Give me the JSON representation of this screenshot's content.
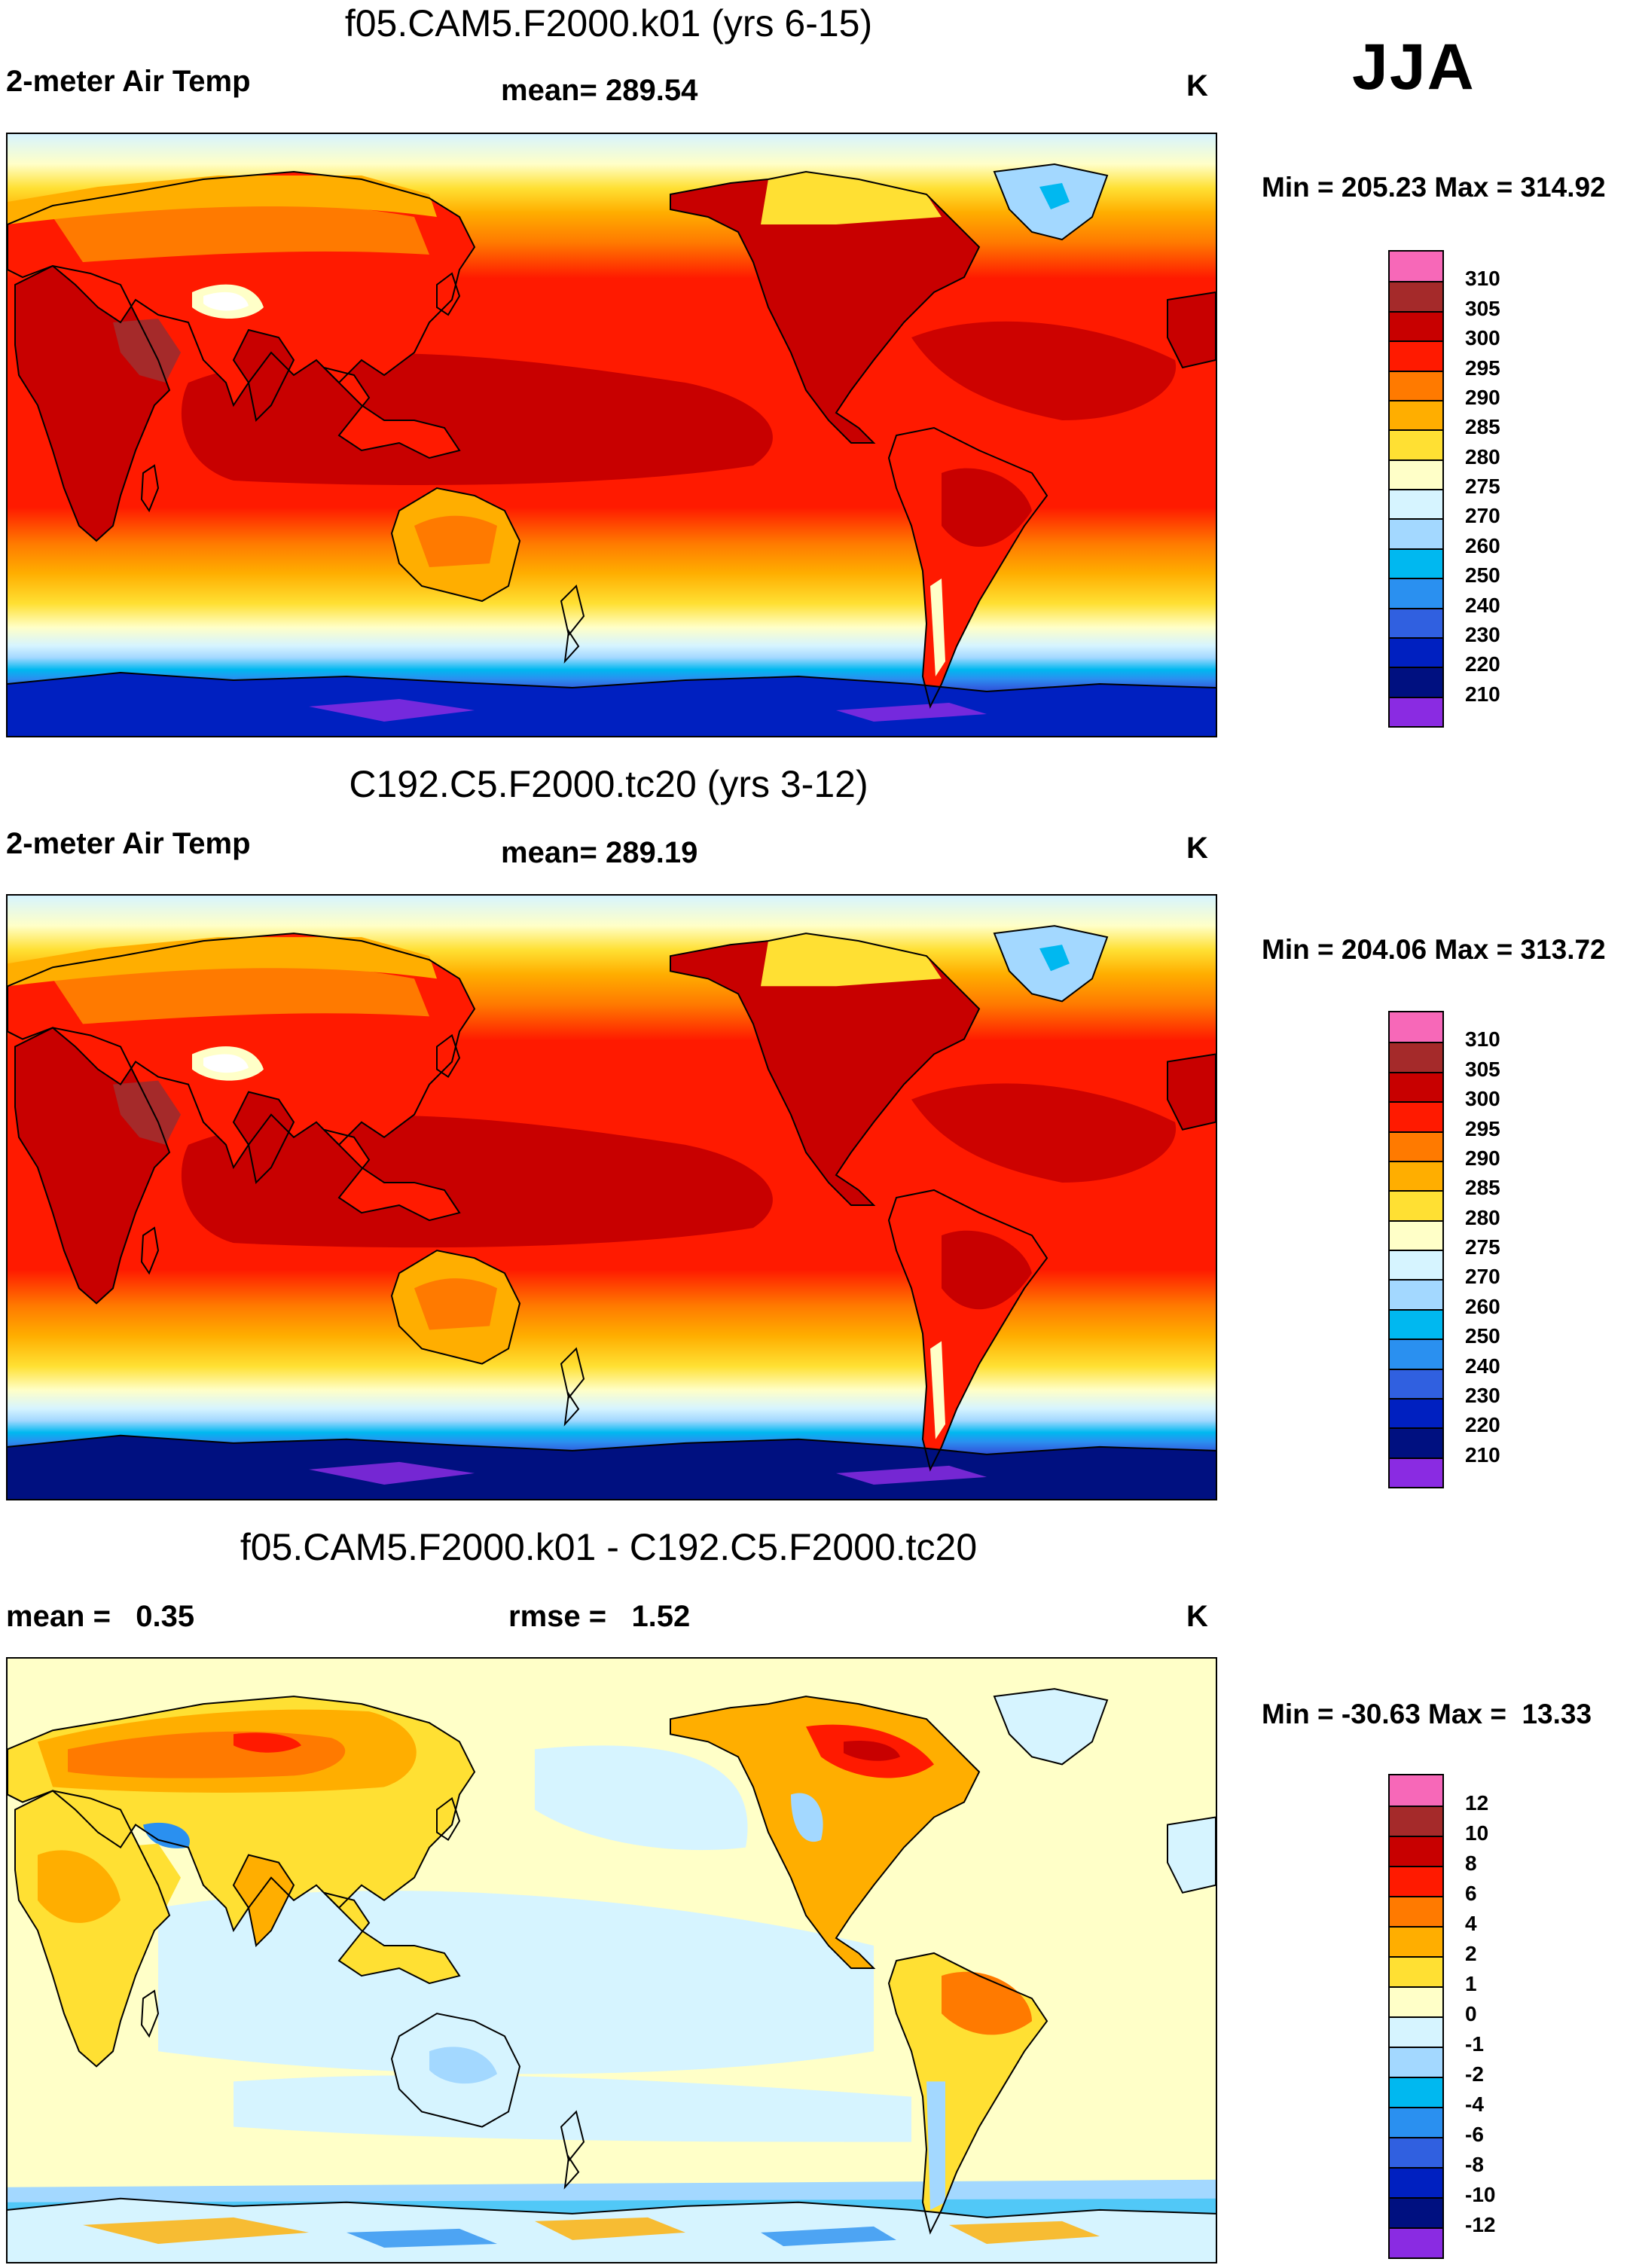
{
  "season": "JJA",
  "panels": [
    {
      "title": "f05.CAM5.F2000.k01 (yrs 6-15)",
      "left_label": "2-meter Air Temp",
      "mid_label": "mean= 289.54",
      "unit": "K",
      "minmax": "Min = 205.23 Max = 314.92",
      "kind": "abs",
      "colorbar": {
        "ticks": [
          "310",
          "305",
          "300",
          "295",
          "290",
          "285",
          "280",
          "275",
          "270",
          "260",
          "250",
          "240",
          "230",
          "220",
          "210"
        ],
        "colors": [
          "#f768b8",
          "#a52a2a",
          "#c80000",
          "#ff1a00",
          "#ff7a00",
          "#ffae00",
          "#ffe033",
          "#ffffc8",
          "#d6f4ff",
          "#a3d8ff",
          "#00b8f0",
          "#2a90f0",
          "#3060e0",
          "#0020c0",
          "#001080",
          "#8a2be2"
        ]
      }
    },
    {
      "title": "C192.C5.F2000.tc20 (yrs 3-12)",
      "left_label": "2-meter Air Temp",
      "mid_label": "mean= 289.19",
      "unit": "K",
      "minmax": "Min = 204.06 Max = 313.72",
      "kind": "abs",
      "colorbar": {
        "ticks": [
          "310",
          "305",
          "300",
          "295",
          "290",
          "285",
          "280",
          "275",
          "270",
          "260",
          "250",
          "240",
          "230",
          "220",
          "210"
        ],
        "colors": [
          "#f768b8",
          "#a52a2a",
          "#c80000",
          "#ff1a00",
          "#ff7a00",
          "#ffae00",
          "#ffe033",
          "#ffffc8",
          "#d6f4ff",
          "#a3d8ff",
          "#00b8f0",
          "#2a90f0",
          "#3060e0",
          "#0020c0",
          "#001080",
          "#8a2be2"
        ]
      }
    },
    {
      "title": "f05.CAM5.F2000.k01 - C192.C5.F2000.tc20",
      "left_label": "mean =   0.35",
      "mid_label": "rmse =   1.52",
      "unit": "K",
      "minmax": "Min = -30.63 Max =  13.33",
      "kind": "diff",
      "colorbar": {
        "ticks": [
          "12",
          "10",
          "8",
          "6",
          "4",
          "2",
          "1",
          "0",
          "-1",
          "-2",
          "-4",
          "-6",
          "-8",
          "-10",
          "-12"
        ],
        "colors": [
          "#f768b8",
          "#a52a2a",
          "#c80000",
          "#ff1a00",
          "#ff7a00",
          "#ffae00",
          "#ffe033",
          "#ffffc8",
          "#d6f4ff",
          "#a3d8ff",
          "#00b8f0",
          "#2a90f0",
          "#3060e0",
          "#0020c0",
          "#001080",
          "#8a2be2"
        ]
      }
    }
  ]
}
